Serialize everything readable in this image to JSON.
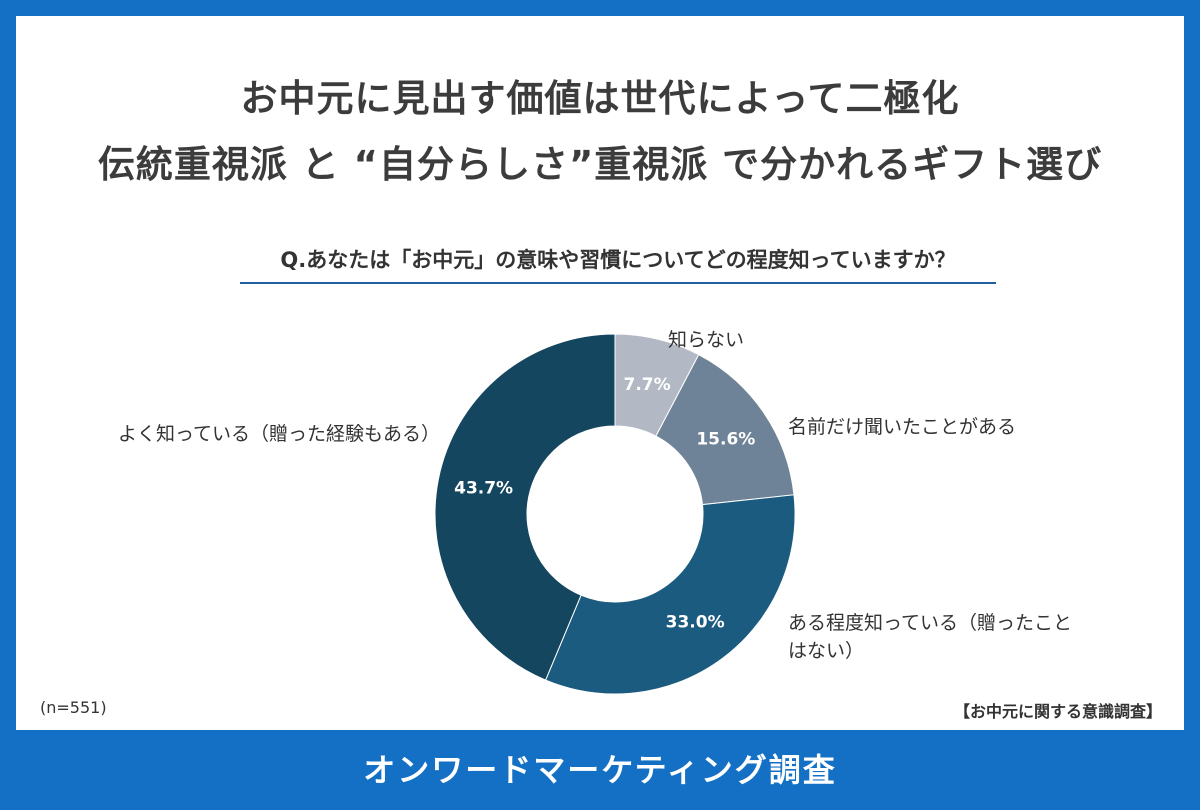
{
  "title_line1": "お中元に見出す価値は世代によって二極化",
  "title_line2": "伝統重視派 と “自分らしさ”重視派 で分かれるギフト選び",
  "question": "Q.あなたは「お中元」の意味や習慣についてどの程度知っていますか？",
  "sample_size": "(n=551)",
  "source_label": "【お中元に関する意識調査】",
  "footer": "オンワードマーケティング調査",
  "chart_data": {
    "type": "pie",
    "donut": true,
    "title": "Q.あなたは「お中元」の意味や習慣についてどの程度知っていますか？",
    "slices": [
      {
        "label": "知らない",
        "value": 7.7,
        "value_label": "7.7%",
        "color": "#b3b8c5"
      },
      {
        "label": "名前だけ聞いたことがある",
        "value": 15.6,
        "value_label": "15.6%",
        "color": "#6f8398"
      },
      {
        "label": "ある程度知っている（贈ったこと",
        "label_line2": "はない）",
        "value": 33.0,
        "value_label": "33.0%",
        "color": "#1b5b7f"
      },
      {
        "label": "よく知っている（贈った経験もある）",
        "value": 43.7,
        "value_label": "43.7%",
        "color": "#15465f"
      }
    ]
  }
}
